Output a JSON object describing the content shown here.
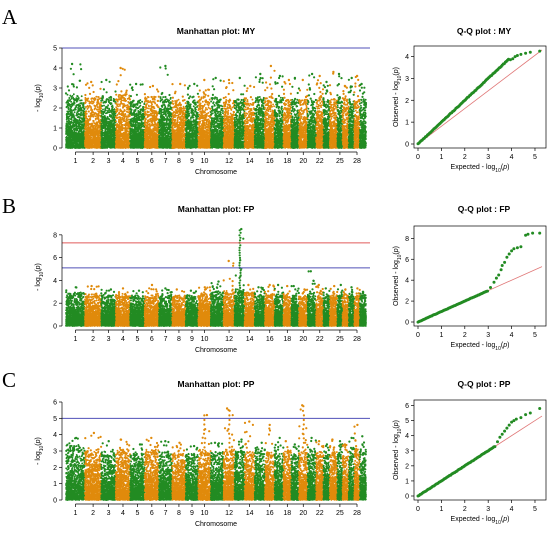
{
  "colors": {
    "odd": "#228b22",
    "even": "#e08a0b",
    "blue_line": "#5151b8",
    "red_line": "#e15b5b",
    "qq_line": "#e07777",
    "axis": "#000000"
  },
  "panels": [
    {
      "label": "A",
      "manhattan": {
        "title": "Manhattan plot: MY",
        "xlabel": "Chromosome",
        "ylabel": "-log10(p)",
        "ylim": [
          0,
          5
        ],
        "yticks": [
          0,
          1,
          2,
          3,
          4,
          5
        ],
        "xtick_labels": [
          "1",
          "2",
          "3",
          "4",
          "5",
          "6",
          "7",
          "8",
          "9",
          "10",
          "12",
          "14",
          "16",
          "18",
          "20",
          "22",
          "25",
          "28"
        ],
        "xtick_chroms": [
          1,
          2,
          3,
          4,
          5,
          6,
          7,
          8,
          9,
          10,
          12,
          14,
          16,
          18,
          20,
          22,
          25,
          28
        ],
        "suggestive_line": 5,
        "genomewide_line": null,
        "chrom_peak": [
          4.2,
          3.3,
          3.4,
          4.0,
          3.2,
          3.1,
          4.1,
          3.2,
          3.2,
          3.4,
          3.5,
          3.4,
          3.5,
          3.1,
          3.7,
          4.1,
          3.6,
          3.4,
          3.5,
          3.4,
          3.7,
          3.6,
          3.3,
          3.8,
          3.7,
          3.1,
          3.5,
          3.6,
          3.2
        ],
        "chrom_body": [
          2.0,
          1.9,
          1.9,
          2.0,
          1.8,
          1.9,
          1.9,
          1.8,
          1.8,
          1.9,
          1.9,
          1.8,
          1.8,
          1.8,
          1.9,
          1.9,
          1.9,
          1.8,
          1.8,
          1.8,
          1.8,
          1.9,
          1.8,
          1.8,
          1.9,
          1.8,
          1.8,
          1.8,
          1.8
        ]
      },
      "qq": {
        "title": "Q-Q plot : MY",
        "xlabel": "Expected -log10(p)",
        "ylabel": "Observed -log10(p)",
        "xlim": [
          0,
          5.3
        ],
        "ylim": [
          0,
          4.3
        ],
        "xticks": [
          0,
          1,
          2,
          3,
          4,
          5
        ],
        "yticks": [
          0,
          1,
          2,
          3,
          4
        ],
        "deviation_start": 3.9,
        "tail_points": [
          [
            3.95,
            3.85
          ],
          [
            4.05,
            3.9
          ],
          [
            4.15,
            4.0
          ],
          [
            4.25,
            4.05
          ],
          [
            4.4,
            4.1
          ],
          [
            4.6,
            4.15
          ],
          [
            4.8,
            4.2
          ],
          [
            5.2,
            4.25
          ]
        ]
      }
    },
    {
      "label": "B",
      "manhattan": {
        "title": "Manhattan plot: FP",
        "xlabel": "Chromosome",
        "ylabel": "-log10(p)",
        "ylim": [
          0,
          8.6
        ],
        "yticks": [
          0,
          2,
          4,
          6,
          8
        ],
        "xtick_labels": [
          "1",
          "2",
          "3",
          "4",
          "5",
          "6",
          "7",
          "8",
          "9",
          "10",
          "12",
          "14",
          "16",
          "18",
          "20",
          "22",
          "25",
          "28"
        ],
        "xtick_chroms": [
          1,
          2,
          3,
          4,
          5,
          6,
          7,
          8,
          9,
          10,
          12,
          14,
          16,
          18,
          20,
          22,
          25,
          28
        ],
        "suggestive_line": 5.1,
        "genomewide_line": 7.3,
        "chrom_peak": [
          3.4,
          3.5,
          3.2,
          3.3,
          3.1,
          3.6,
          3.3,
          3.2,
          3.1,
          3.4,
          3.9,
          5.7,
          8.5,
          3.6,
          3.4,
          3.6,
          3.6,
          3.5,
          3.5,
          3.2,
          4.8,
          3.6,
          3.3,
          3.5,
          3.6,
          3.2,
          3.4,
          3.3,
          3.0
        ],
        "chrom_body": [
          2.2,
          2.1,
          2.1,
          2.1,
          2.0,
          2.0,
          2.0,
          2.0,
          2.0,
          2.1,
          2.2,
          2.3,
          2.4,
          2.2,
          2.0,
          2.1,
          2.1,
          2.0,
          2.0,
          2.0,
          2.1,
          2.0,
          2.0,
          2.0,
          2.0,
          2.0,
          2.0,
          2.0,
          2.0
        ]
      },
      "qq": {
        "title": "Q-Q plot : FP",
        "xlabel": "Expected -log10(p)",
        "ylabel": "Observed -log10(p)",
        "xlim": [
          0,
          5.3
        ],
        "ylim": [
          0,
          8.8
        ],
        "xticks": [
          0,
          1,
          2,
          3,
          4,
          5
        ],
        "yticks": [
          0,
          2,
          4,
          6,
          8
        ],
        "deviation_start": 3.0,
        "tail_points": [
          [
            3.1,
            3.3
          ],
          [
            3.25,
            3.8
          ],
          [
            3.35,
            4.2
          ],
          [
            3.45,
            4.5
          ],
          [
            3.55,
            5.0
          ],
          [
            3.6,
            5.4
          ],
          [
            3.7,
            5.7
          ],
          [
            3.8,
            6.2
          ],
          [
            3.9,
            6.5
          ],
          [
            4.0,
            6.8
          ],
          [
            4.1,
            7.0
          ],
          [
            4.25,
            7.1
          ],
          [
            4.4,
            7.2
          ],
          [
            4.6,
            8.3
          ],
          [
            4.7,
            8.4
          ],
          [
            4.9,
            8.5
          ],
          [
            5.2,
            8.5
          ]
        ]
      }
    },
    {
      "label": "C",
      "manhattan": {
        "title": "Manhattan plot: PP",
        "xlabel": "Chromosome",
        "ylabel": "-log10(p)",
        "ylim": [
          0,
          6
        ],
        "yticks": [
          0,
          1,
          2,
          3,
          4,
          5,
          6
        ],
        "xtick_labels": [
          "1",
          "2",
          "3",
          "4",
          "5",
          "6",
          "7",
          "8",
          "9",
          "10",
          "12",
          "14",
          "16",
          "18",
          "20",
          "22",
          "25",
          "28"
        ],
        "xtick_chroms": [
          1,
          2,
          3,
          4,
          5,
          6,
          7,
          8,
          9,
          10,
          12,
          14,
          16,
          18,
          20,
          22,
          25,
          28
        ],
        "suggestive_line": 5,
        "genomewide_line": null,
        "chrom_peak": [
          3.8,
          4.1,
          3.6,
          3.7,
          3.4,
          3.8,
          3.6,
          3.5,
          3.3,
          5.2,
          3.5,
          5.6,
          3.7,
          4.8,
          3.5,
          4.6,
          3.8,
          3.6,
          3.4,
          5.8,
          3.8,
          3.6,
          3.4,
          3.7,
          3.6,
          3.4,
          3.8,
          4.6,
          3.9
        ],
        "chrom_body": [
          2.5,
          2.3,
          2.2,
          2.3,
          2.1,
          2.3,
          2.2,
          2.2,
          2.1,
          2.3,
          2.2,
          2.3,
          2.3,
          2.2,
          2.2,
          2.2,
          2.2,
          2.2,
          2.1,
          2.3,
          2.2,
          2.2,
          2.1,
          2.2,
          2.2,
          2.1,
          2.2,
          2.3,
          2.3
        ]
      },
      "qq": {
        "title": "Q-Q plot : PP",
        "xlabel": "Expected -log10(p)",
        "ylabel": "Observed -log10(p)",
        "xlim": [
          0,
          5.3
        ],
        "ylim": [
          0,
          6.1
        ],
        "xticks": [
          0,
          1,
          2,
          3,
          4,
          5
        ],
        "yticks": [
          0,
          1,
          2,
          3,
          4,
          5,
          6
        ],
        "deviation_start": 3.3,
        "tail_points": [
          [
            3.4,
            3.6
          ],
          [
            3.5,
            3.9
          ],
          [
            3.6,
            4.1
          ],
          [
            3.7,
            4.3
          ],
          [
            3.8,
            4.5
          ],
          [
            3.9,
            4.7
          ],
          [
            4.0,
            4.9
          ],
          [
            4.1,
            5.0
          ],
          [
            4.2,
            5.1
          ],
          [
            4.4,
            5.2
          ],
          [
            4.6,
            5.4
          ],
          [
            4.8,
            5.5
          ],
          [
            5.2,
            5.8
          ]
        ]
      }
    }
  ],
  "chart_data": [
    {
      "type": "scatter",
      "title": "Manhattan plot: MY",
      "xlabel": "Chromosome",
      "ylabel": "-log10(p)",
      "ylim": [
        0,
        5
      ],
      "categories": [
        "1",
        "2",
        "3",
        "4",
        "5",
        "6",
        "7",
        "8",
        "9",
        "10",
        "12",
        "14",
        "16",
        "18",
        "20",
        "22",
        "25",
        "28"
      ],
      "threshold_lines": [
        5
      ]
    },
    {
      "type": "scatter",
      "title": "Q-Q plot : MY",
      "xlabel": "Expected -log10(p)",
      "ylabel": "Observed -log10(p)",
      "xlim": [
        0,
        5.3
      ],
      "ylim": [
        0,
        4.3
      ]
    },
    {
      "type": "scatter",
      "title": "Manhattan plot: FP",
      "xlabel": "Chromosome",
      "ylabel": "-log10(p)",
      "ylim": [
        0,
        8.6
      ],
      "categories": [
        "1",
        "2",
        "3",
        "4",
        "5",
        "6",
        "7",
        "8",
        "9",
        "10",
        "12",
        "14",
        "16",
        "18",
        "20",
        "22",
        "25",
        "28"
      ],
      "threshold_lines": [
        5.1,
        7.3
      ]
    },
    {
      "type": "scatter",
      "title": "Q-Q plot : FP",
      "xlabel": "Expected -log10(p)",
      "ylabel": "Observed -log10(p)",
      "xlim": [
        0,
        5.3
      ],
      "ylim": [
        0,
        8.8
      ]
    },
    {
      "type": "scatter",
      "title": "Manhattan plot: PP",
      "xlabel": "Chromosome",
      "ylabel": "-log10(p)",
      "ylim": [
        0,
        6
      ],
      "categories": [
        "1",
        "2",
        "3",
        "4",
        "5",
        "6",
        "7",
        "8",
        "9",
        "10",
        "12",
        "14",
        "16",
        "18",
        "20",
        "22",
        "25",
        "28"
      ],
      "threshold_lines": [
        5
      ]
    },
    {
      "type": "scatter",
      "title": "Q-Q plot : PP",
      "xlabel": "Expected -log10(p)",
      "ylabel": "Observed -log10(p)",
      "xlim": [
        0,
        5.3
      ],
      "ylim": [
        0,
        6.1
      ]
    }
  ]
}
